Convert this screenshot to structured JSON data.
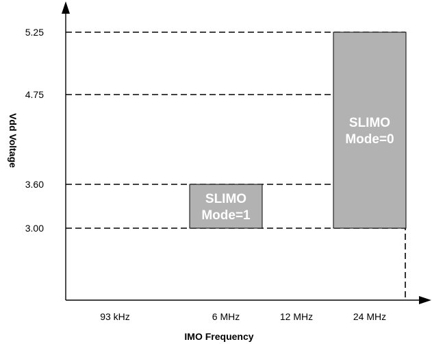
{
  "chart_data": {
    "type": "area",
    "title": "",
    "xlabel": "IMO Frequency",
    "ylabel": "Vdd Voltage",
    "x_categories": [
      "93 kHz",
      "6 MHz",
      "12 MHz",
      "24 MHz"
    ],
    "y_ticks": [
      "3.00",
      "3.60",
      "4.75",
      "5.25"
    ],
    "y_values": [
      3.0,
      3.6,
      4.75,
      5.25
    ],
    "grid": "dashed horizontal at voltage ticks",
    "regions": [
      {
        "label_lines": [
          "SLIMO",
          "Mode=1"
        ],
        "x_range": [
          "6 MHz",
          "6 MHz"
        ],
        "y_range": [
          3.0,
          3.6
        ],
        "color": "#b2b2b2"
      },
      {
        "label_lines": [
          "SLIMO",
          "Mode=0"
        ],
        "x_range": [
          "24 MHz",
          "24 MHz"
        ],
        "y_range": [
          3.0,
          5.25
        ],
        "color": "#b2b2b2"
      }
    ]
  }
}
